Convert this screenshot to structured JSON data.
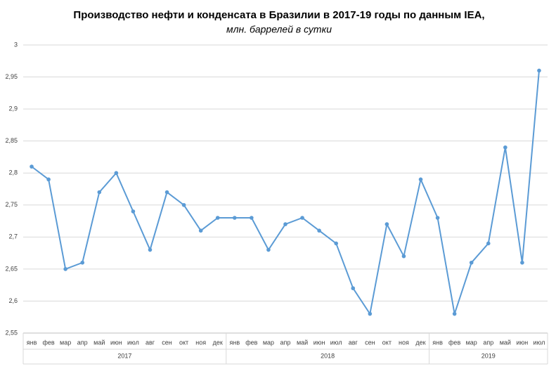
{
  "chart_data": {
    "type": "line",
    "title": "Производство нефти и конденсата в Бразилии в 2017-19 годы по данным IEA,",
    "subtitle": "млн. баррелей в сутки",
    "color": "#5b9bd5",
    "grid": true,
    "ylim": [
      2.55,
      3
    ],
    "yticks": [
      {
        "value": 2.55,
        "label": "2,55"
      },
      {
        "value": 2.6,
        "label": "2,6"
      },
      {
        "value": 2.65,
        "label": "2,65"
      },
      {
        "value": 2.7,
        "label": "2,7"
      },
      {
        "value": 2.75,
        "label": "2,75"
      },
      {
        "value": 2.8,
        "label": "2,8"
      },
      {
        "value": 2.85,
        "label": "2,85"
      },
      {
        "value": 2.9,
        "label": "2,9"
      },
      {
        "value": 2.95,
        "label": "2,95"
      },
      3
    ],
    "groups": [
      {
        "name": "2017",
        "categories": [
          "янв",
          "фев",
          "мар",
          "апр",
          "май",
          "июн",
          "июл",
          "авг",
          "сен",
          "окт",
          "ноя",
          "дек"
        ],
        "values": [
          2.81,
          2.79,
          2.65,
          2.66,
          2.77,
          2.8,
          2.74,
          2.68,
          2.77,
          2.75,
          2.71,
          2.73
        ]
      },
      {
        "name": "2018",
        "categories": [
          "янв",
          "фев",
          "мар",
          "апр",
          "май",
          "июн",
          "июл",
          "авг",
          "сен",
          "окт",
          "ноя",
          "дек"
        ],
        "values": [
          2.73,
          2.73,
          2.68,
          2.72,
          2.73,
          2.71,
          2.69,
          2.62,
          2.58,
          2.72,
          2.67,
          2.79
        ]
      },
      {
        "name": "2019",
        "categories": [
          "янв",
          "фев",
          "мар",
          "апр",
          "май",
          "июн",
          "июл"
        ],
        "values": [
          2.73,
          2.58,
          2.66,
          2.69,
          2.84,
          2.66,
          2.96
        ]
      }
    ]
  }
}
